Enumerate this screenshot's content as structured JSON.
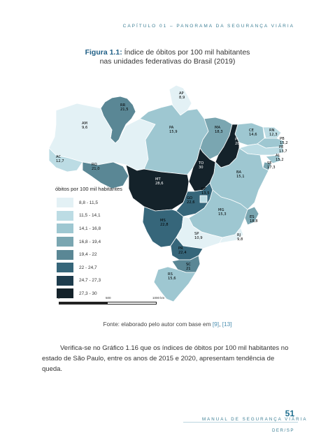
{
  "header": "CAPÍTULO 01 – PANORAMA DA SEGURANÇA VIÁRIA",
  "figure": {
    "label": "Figura 1.1:",
    "title_line1": " Índice de óbitos por 100 mil habitantes",
    "title_line2": "nas unidades federativas do Brasil (2019)"
  },
  "legend": {
    "title": "óbitos por 100 mil habitantes",
    "items": [
      {
        "label": "8,8 - 11,5",
        "color": "#e3f1f5"
      },
      {
        "label": "11,5 - 14,1",
        "color": "#bcdce4"
      },
      {
        "label": "14,1 - 16,8",
        "color": "#9ec7d1"
      },
      {
        "label": "16,8 - 19,4",
        "color": "#7aa6b1"
      },
      {
        "label": "19,4 - 22",
        "color": "#5a8795"
      },
      {
        "label": "22 - 24,7",
        "color": "#36667a"
      },
      {
        "label": "24,7 - 27,3",
        "color": "#1e3c4d"
      },
      {
        "label": "27,3 - 30",
        "color": "#14222a"
      }
    ]
  },
  "scale": {
    "labels": [
      "0",
      "500",
      "1000 km"
    ]
  },
  "states": [
    {
      "uf": "RR",
      "value": "21,5",
      "color": "#5a8795"
    },
    {
      "uf": "AP",
      "value": "8,9",
      "color": "#e3f1f5"
    },
    {
      "uf": "AM",
      "value": "9,6",
      "color": "#e3f1f5"
    },
    {
      "uf": "PA",
      "value": "15,9",
      "color": "#9ec7d1"
    },
    {
      "uf": "MA",
      "value": "18,3",
      "color": "#7aa6b1"
    },
    {
      "uf": "CE",
      "value": "14,6",
      "color": "#9ec7d1"
    },
    {
      "uf": "RN",
      "value": "12,3",
      "color": "#bcdce4"
    },
    {
      "uf": "PB",
      "value": "15,2",
      "color": "#9ec7d1"
    },
    {
      "uf": "PE",
      "value": "13,7",
      "color": "#bcdce4"
    },
    {
      "uf": "AL",
      "value": "15,2",
      "color": "#9ec7d1"
    },
    {
      "uf": "SE",
      "value": "17,3",
      "color": "#7aa6b1"
    },
    {
      "uf": "PI",
      "value": "28",
      "color": "#14222a"
    },
    {
      "uf": "AC",
      "value": "12,7",
      "color": "#bcdce4"
    },
    {
      "uf": "RO",
      "value": "21,0",
      "color": "#5a8795"
    },
    {
      "uf": "TO",
      "value": "30",
      "color": "#14222a"
    },
    {
      "uf": "BA",
      "value": "15,1",
      "color": "#9ec7d1"
    },
    {
      "uf": "MT",
      "value": "28,6",
      "color": "#14222a"
    },
    {
      "uf": "DF",
      "value": "13,5",
      "color": "#bcdce4"
    },
    {
      "uf": "GO",
      "value": "22,6",
      "color": "#36667a"
    },
    {
      "uf": "MG",
      "value": "15,3",
      "color": "#9ec7d1"
    },
    {
      "uf": "ES",
      "value": "18,8",
      "color": "#7aa6b1"
    },
    {
      "uf": "MS",
      "value": "22,8",
      "color": "#36667a"
    },
    {
      "uf": "SP",
      "value": "10,9",
      "color": "#e3f1f5"
    },
    {
      "uf": "RJ",
      "value": "9,8",
      "color": "#e3f1f5"
    },
    {
      "uf": "PR",
      "value": "22,4",
      "color": "#36667a"
    },
    {
      "uf": "SC",
      "value": "21",
      "color": "#5a8795"
    },
    {
      "uf": "RS",
      "value": "15,6",
      "color": "#9ec7d1"
    }
  ],
  "source": {
    "prefix": "Fonte: elaborado pelo autor com base em ",
    "ref1": "[9]",
    "sep": ", ",
    "ref2": "[13]"
  },
  "paragraph": "Verifica-se no Gráfico 1.16 que os índices de óbitos por 100 mil habitantes no estado de São Paulo, entre os anos de 2015 e 2020, apresentam tendência de queda.",
  "page_number": "51",
  "footer": {
    "manual": "MANUAL DE SEGURANÇA VIÁRIA",
    "der": "DER/SP"
  }
}
